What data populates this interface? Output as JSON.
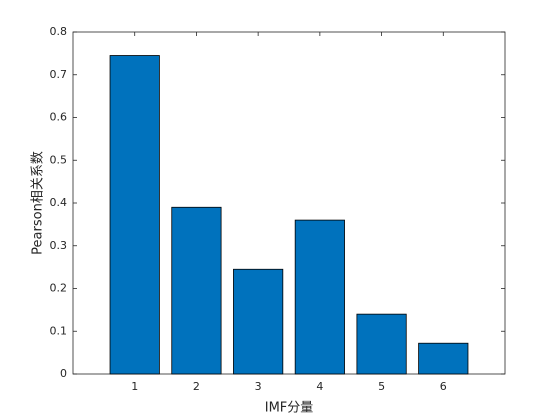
{
  "chart_data": {
    "type": "bar",
    "x": [
      1,
      2,
      3,
      4,
      5,
      6
    ],
    "values": [
      0.745,
      0.39,
      0.245,
      0.36,
      0.14,
      0.072
    ],
    "color": "#0072bd",
    "xlim": [
      0,
      7
    ],
    "xticks": [
      1,
      2,
      3,
      4,
      5,
      6
    ],
    "ylim": [
      0,
      0.8
    ],
    "yticks": [
      0,
      0.1,
      0.2,
      0.3,
      0.4,
      0.5,
      0.6,
      0.7,
      0.8
    ],
    "xlabel": "IMF分量",
    "ylabel": "Pearson相关系数"
  }
}
